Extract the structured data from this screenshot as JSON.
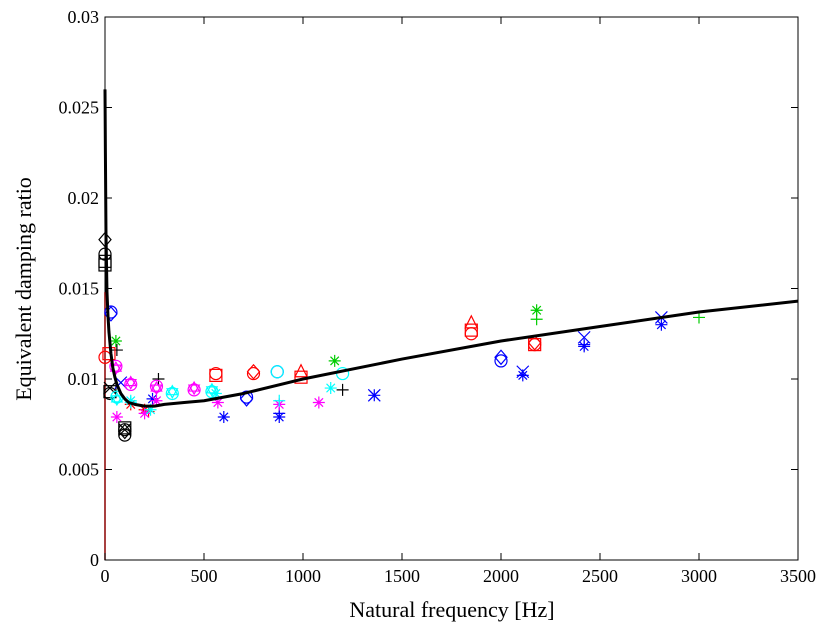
{
  "chart_data": {
    "type": "scatter",
    "title": "",
    "xlabel": "Natural frequency [Hz]",
    "ylabel": "Equivalent damping ratio",
    "xlim": [
      0,
      3500
    ],
    "ylim": [
      0,
      0.03
    ],
    "xticks": [
      0,
      500,
      1000,
      1500,
      2000,
      2500,
      3000,
      3500
    ],
    "xtick_labels": [
      "0",
      "500",
      "1000",
      "1500",
      "2000",
      "2500",
      "3000",
      "3500"
    ],
    "yticks": [
      0,
      0.005,
      0.01,
      0.015,
      0.02,
      0.025,
      0.03
    ],
    "ytick_labels": [
      "0",
      "0.005",
      "0.01",
      "0.015",
      "0.02",
      "0.025",
      "0.03"
    ],
    "grid": false,
    "colors": {
      "black": "#000000",
      "blue": "#0000ff",
      "red": "#ff0000",
      "green": "#00cc00",
      "magenta": "#ff00ff",
      "cyan": "#00ffff",
      "fit_curve": "#000000",
      "axis_line": "#8b0000"
    },
    "fit_curve": {
      "x": [
        0,
        2,
        5,
        10,
        15,
        20,
        30,
        40,
        50,
        60,
        80,
        100,
        120,
        150,
        200,
        250,
        300,
        400,
        500,
        700,
        1000,
        1500,
        2000,
        2500,
        3000,
        3500
      ],
      "y": [
        0.026,
        0.0225,
        0.018,
        0.0148,
        0.0135,
        0.0126,
        0.0114,
        0.0106,
        0.0101,
        0.0097,
        0.0092,
        0.0089,
        0.0087,
        0.0086,
        0.0085,
        0.0085,
        0.0086,
        0.0087,
        0.0088,
        0.0092,
        0.01,
        0.0111,
        0.0121,
        0.0129,
        0.0137,
        0.0143
      ]
    },
    "series": [
      {
        "color": "black",
        "marker": "square",
        "points": [
          [
            0,
            0.0165
          ],
          [
            0,
            0.0163
          ],
          [
            25,
            0.0093
          ],
          [
            100,
            0.0073
          ]
        ]
      },
      {
        "color": "black",
        "marker": "circle",
        "points": [
          [
            0,
            0.0169
          ],
          [
            25,
            0.0092
          ],
          [
            100,
            0.0069
          ],
          [
            100,
            0.0072
          ]
        ]
      },
      {
        "color": "black",
        "marker": "diamond",
        "points": [
          [
            0,
            0.0177
          ],
          [
            100,
            0.0071
          ]
        ]
      },
      {
        "color": "black",
        "marker": "x",
        "points": [
          [
            100,
            0.0072
          ],
          [
            25,
            0.0095
          ]
        ]
      },
      {
        "color": "black",
        "marker": "plus",
        "points": [
          [
            60,
            0.0116
          ],
          [
            270,
            0.01
          ],
          [
            1200,
            0.0094
          ]
        ]
      },
      {
        "color": "blue",
        "marker": "circle",
        "points": [
          [
            30,
            0.0137
          ],
          [
            715,
            0.009
          ],
          [
            870,
            0.0104
          ],
          [
            2000,
            0.011
          ]
        ]
      },
      {
        "color": "blue",
        "marker": "diamond",
        "points": [
          [
            30,
            0.0136
          ],
          [
            715,
            0.0089
          ],
          [
            2000,
            0.0112
          ]
        ]
      },
      {
        "color": "blue",
        "marker": "asterisk",
        "points": [
          [
            240,
            0.0089
          ],
          [
            600,
            0.0079
          ],
          [
            880,
            0.0079
          ],
          [
            1360,
            0.0091
          ],
          [
            2110,
            0.0102
          ],
          [
            2420,
            0.0118
          ],
          [
            2810,
            0.013
          ]
        ]
      },
      {
        "color": "blue",
        "marker": "x",
        "points": [
          [
            80,
            0.0098
          ],
          [
            1360,
            0.0091
          ],
          [
            2110,
            0.0104
          ],
          [
            2420,
            0.0123
          ],
          [
            2810,
            0.0134
          ]
        ]
      },
      {
        "color": "blue",
        "marker": "plus",
        "points": [
          [
            880,
            0.0081
          ],
          [
            2420,
            0.0119
          ]
        ]
      },
      {
        "color": "red",
        "marker": "circle",
        "points": [
          [
            0,
            0.0112
          ],
          [
            560,
            0.0103
          ],
          [
            750,
            0.0103
          ],
          [
            1850,
            0.0125
          ],
          [
            2170,
            0.0119
          ]
        ]
      },
      {
        "color": "red",
        "marker": "square",
        "points": [
          [
            20,
            0.0114
          ],
          [
            560,
            0.0102
          ],
          [
            990,
            0.0101
          ],
          [
            1850,
            0.0127
          ],
          [
            2170,
            0.0119
          ]
        ]
      },
      {
        "color": "red",
        "marker": "triangle",
        "points": [
          [
            990,
            0.0104
          ],
          [
            1850,
            0.0131
          ]
        ]
      },
      {
        "color": "red",
        "marker": "diamond",
        "points": [
          [
            750,
            0.0104
          ],
          [
            2170,
            0.012
          ]
        ]
      },
      {
        "color": "red",
        "marker": "asterisk",
        "points": [
          [
            200,
            0.0083
          ],
          [
            130,
            0.0086
          ]
        ]
      },
      {
        "color": "red",
        "marker": "plus",
        "points": [
          [
            220,
            0.0082
          ]
        ]
      },
      {
        "color": "green",
        "marker": "asterisk",
        "points": [
          [
            55,
            0.0121
          ],
          [
            1160,
            0.011
          ],
          [
            2180,
            0.0138
          ]
        ]
      },
      {
        "color": "green",
        "marker": "plus",
        "points": [
          [
            2180,
            0.0133
          ],
          [
            3000,
            0.0134
          ]
        ]
      },
      {
        "color": "magenta",
        "marker": "circle",
        "points": [
          [
            55,
            0.0107
          ],
          [
            130,
            0.0097
          ],
          [
            260,
            0.0096
          ],
          [
            450,
            0.0094
          ]
        ]
      },
      {
        "color": "magenta",
        "marker": "hexagram",
        "points": [
          [
            55,
            0.0106
          ],
          [
            130,
            0.0098
          ],
          [
            260,
            0.0095
          ],
          [
            450,
            0.0095
          ]
        ]
      },
      {
        "color": "magenta",
        "marker": "asterisk",
        "points": [
          [
            60,
            0.0079
          ],
          [
            200,
            0.0081
          ],
          [
            260,
            0.0088
          ],
          [
            570,
            0.0087
          ],
          [
            880,
            0.0086
          ],
          [
            1080,
            0.0087
          ]
        ]
      },
      {
        "color": "cyan",
        "marker": "circle",
        "points": [
          [
            60,
            0.009
          ],
          [
            340,
            0.0092
          ],
          [
            540,
            0.0093
          ],
          [
            870,
            0.0104
          ],
          [
            1200,
            0.0103
          ]
        ]
      },
      {
        "color": "cyan",
        "marker": "hexagram",
        "points": [
          [
            60,
            0.0089
          ],
          [
            340,
            0.0093
          ],
          [
            540,
            0.0094
          ]
        ]
      },
      {
        "color": "cyan",
        "marker": "asterisk",
        "points": [
          [
            130,
            0.0088
          ],
          [
            230,
            0.0083
          ],
          [
            1140,
            0.0095
          ],
          [
            560,
            0.0092
          ]
        ]
      },
      {
        "color": "cyan",
        "marker": "plus",
        "points": [
          [
            130,
            0.0087
          ],
          [
            880,
            0.0088
          ]
        ]
      }
    ]
  }
}
